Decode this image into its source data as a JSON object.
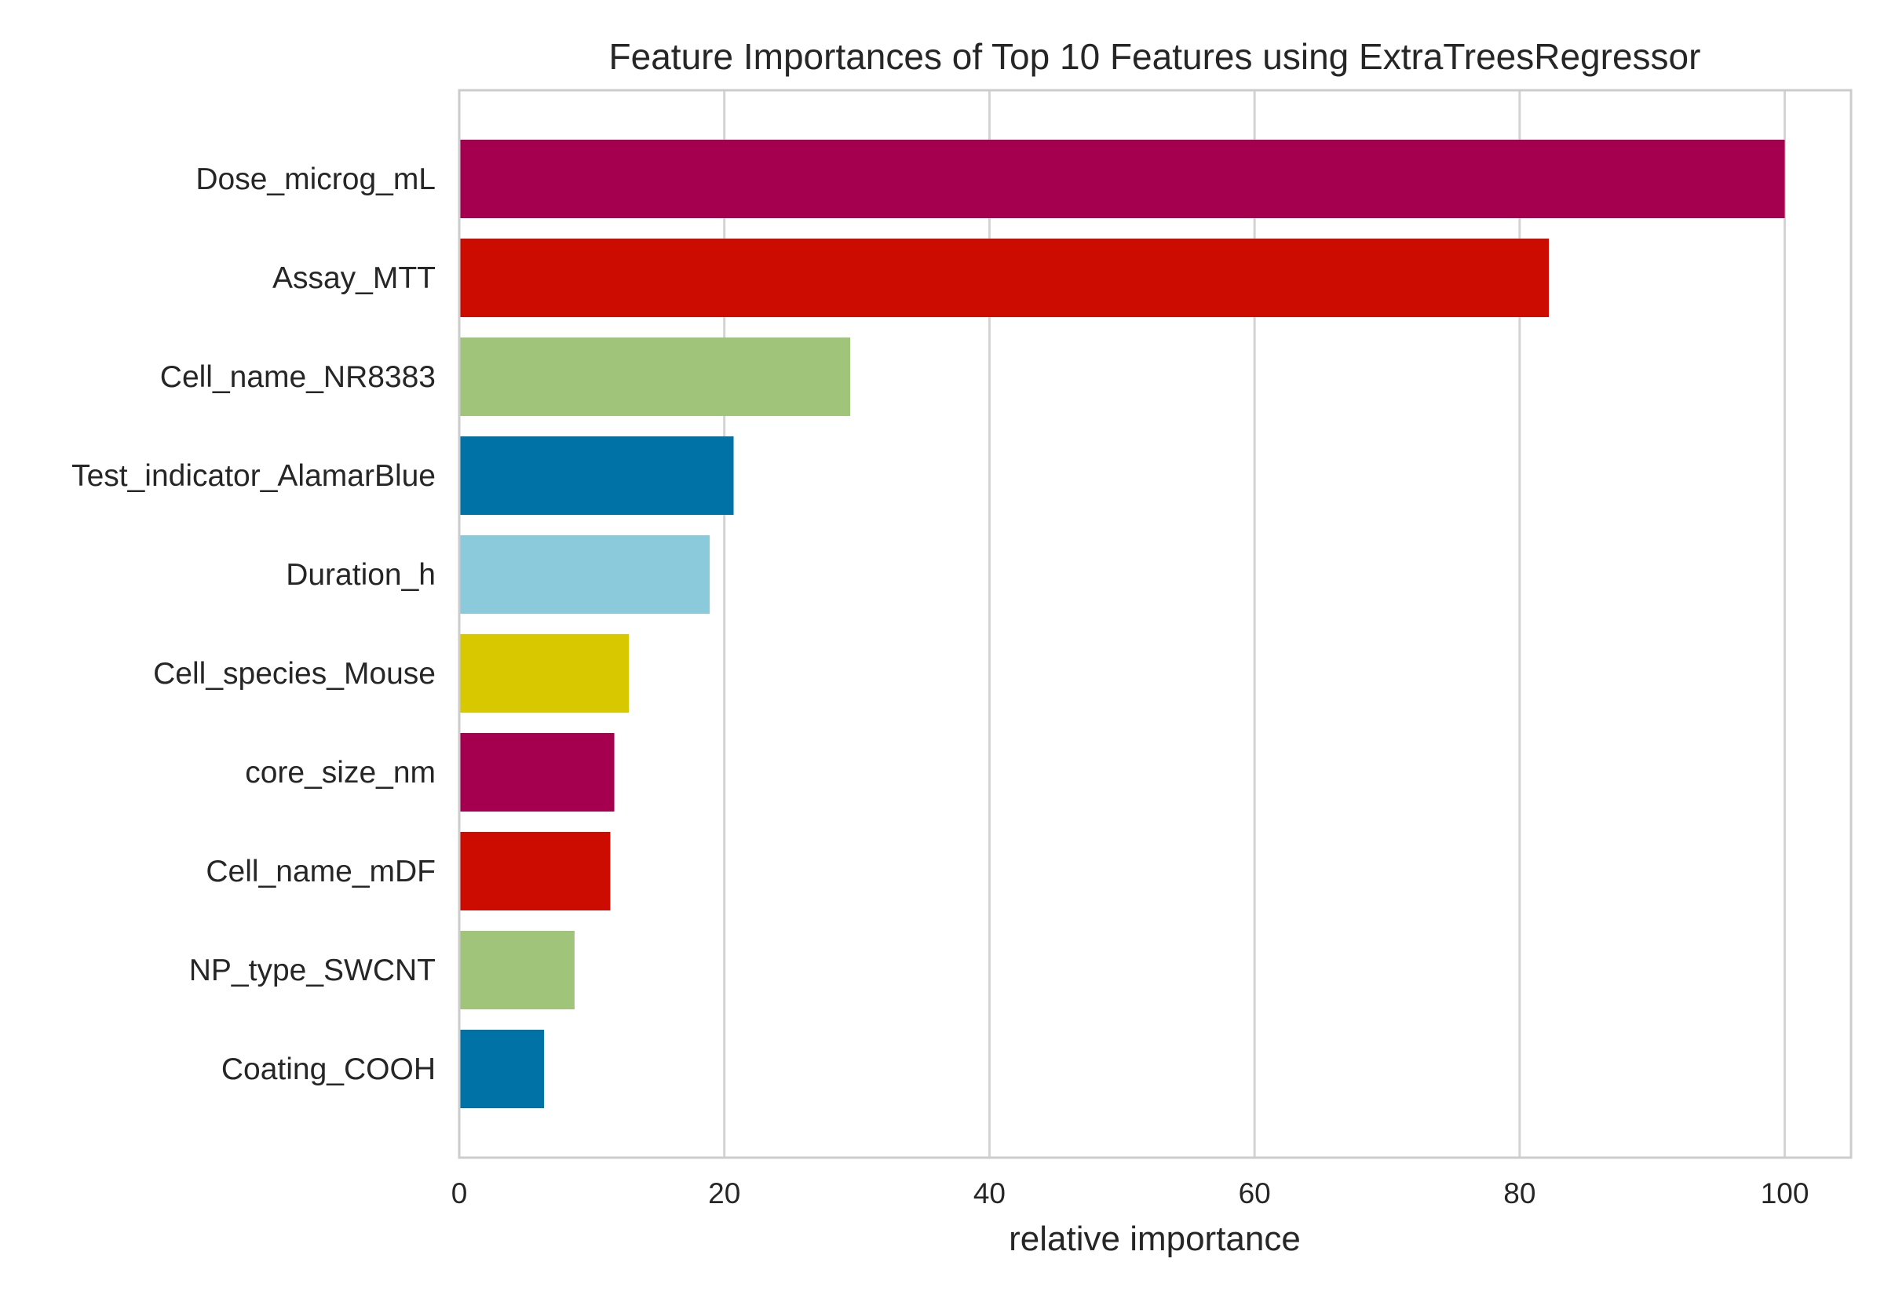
{
  "chart_data": {
    "type": "bar",
    "orientation": "horizontal",
    "title": "Feature Importances of Top 10 Features using ExtraTreesRegressor",
    "xlabel": "relative importance",
    "ylabel": "",
    "xlim": [
      0,
      105
    ],
    "xticks": [
      0,
      20,
      40,
      60,
      80,
      100
    ],
    "grid": "vertical",
    "legend": "none",
    "categories": [
      "Dose_microg_mL",
      "Assay_MTT",
      "Cell_name_NR8383",
      "Test_indicator_AlamarBlue",
      "Duration_h",
      "Cell_species_Mouse",
      "core_size_nm",
      "Cell_name_mDF",
      "NP_type_SWCNT",
      "Coating_COOH"
    ],
    "values": [
      100,
      82.2,
      29.5,
      20.7,
      18.9,
      12.8,
      11.7,
      11.4,
      8.7,
      6.4
    ],
    "colors": [
      "#a50050",
      "#cc0c00",
      "#a0c47a",
      "#0072a5",
      "#8acadb",
      "#d8c800",
      "#a50050",
      "#cc0c00",
      "#a0c47a",
      "#0072a5"
    ]
  }
}
